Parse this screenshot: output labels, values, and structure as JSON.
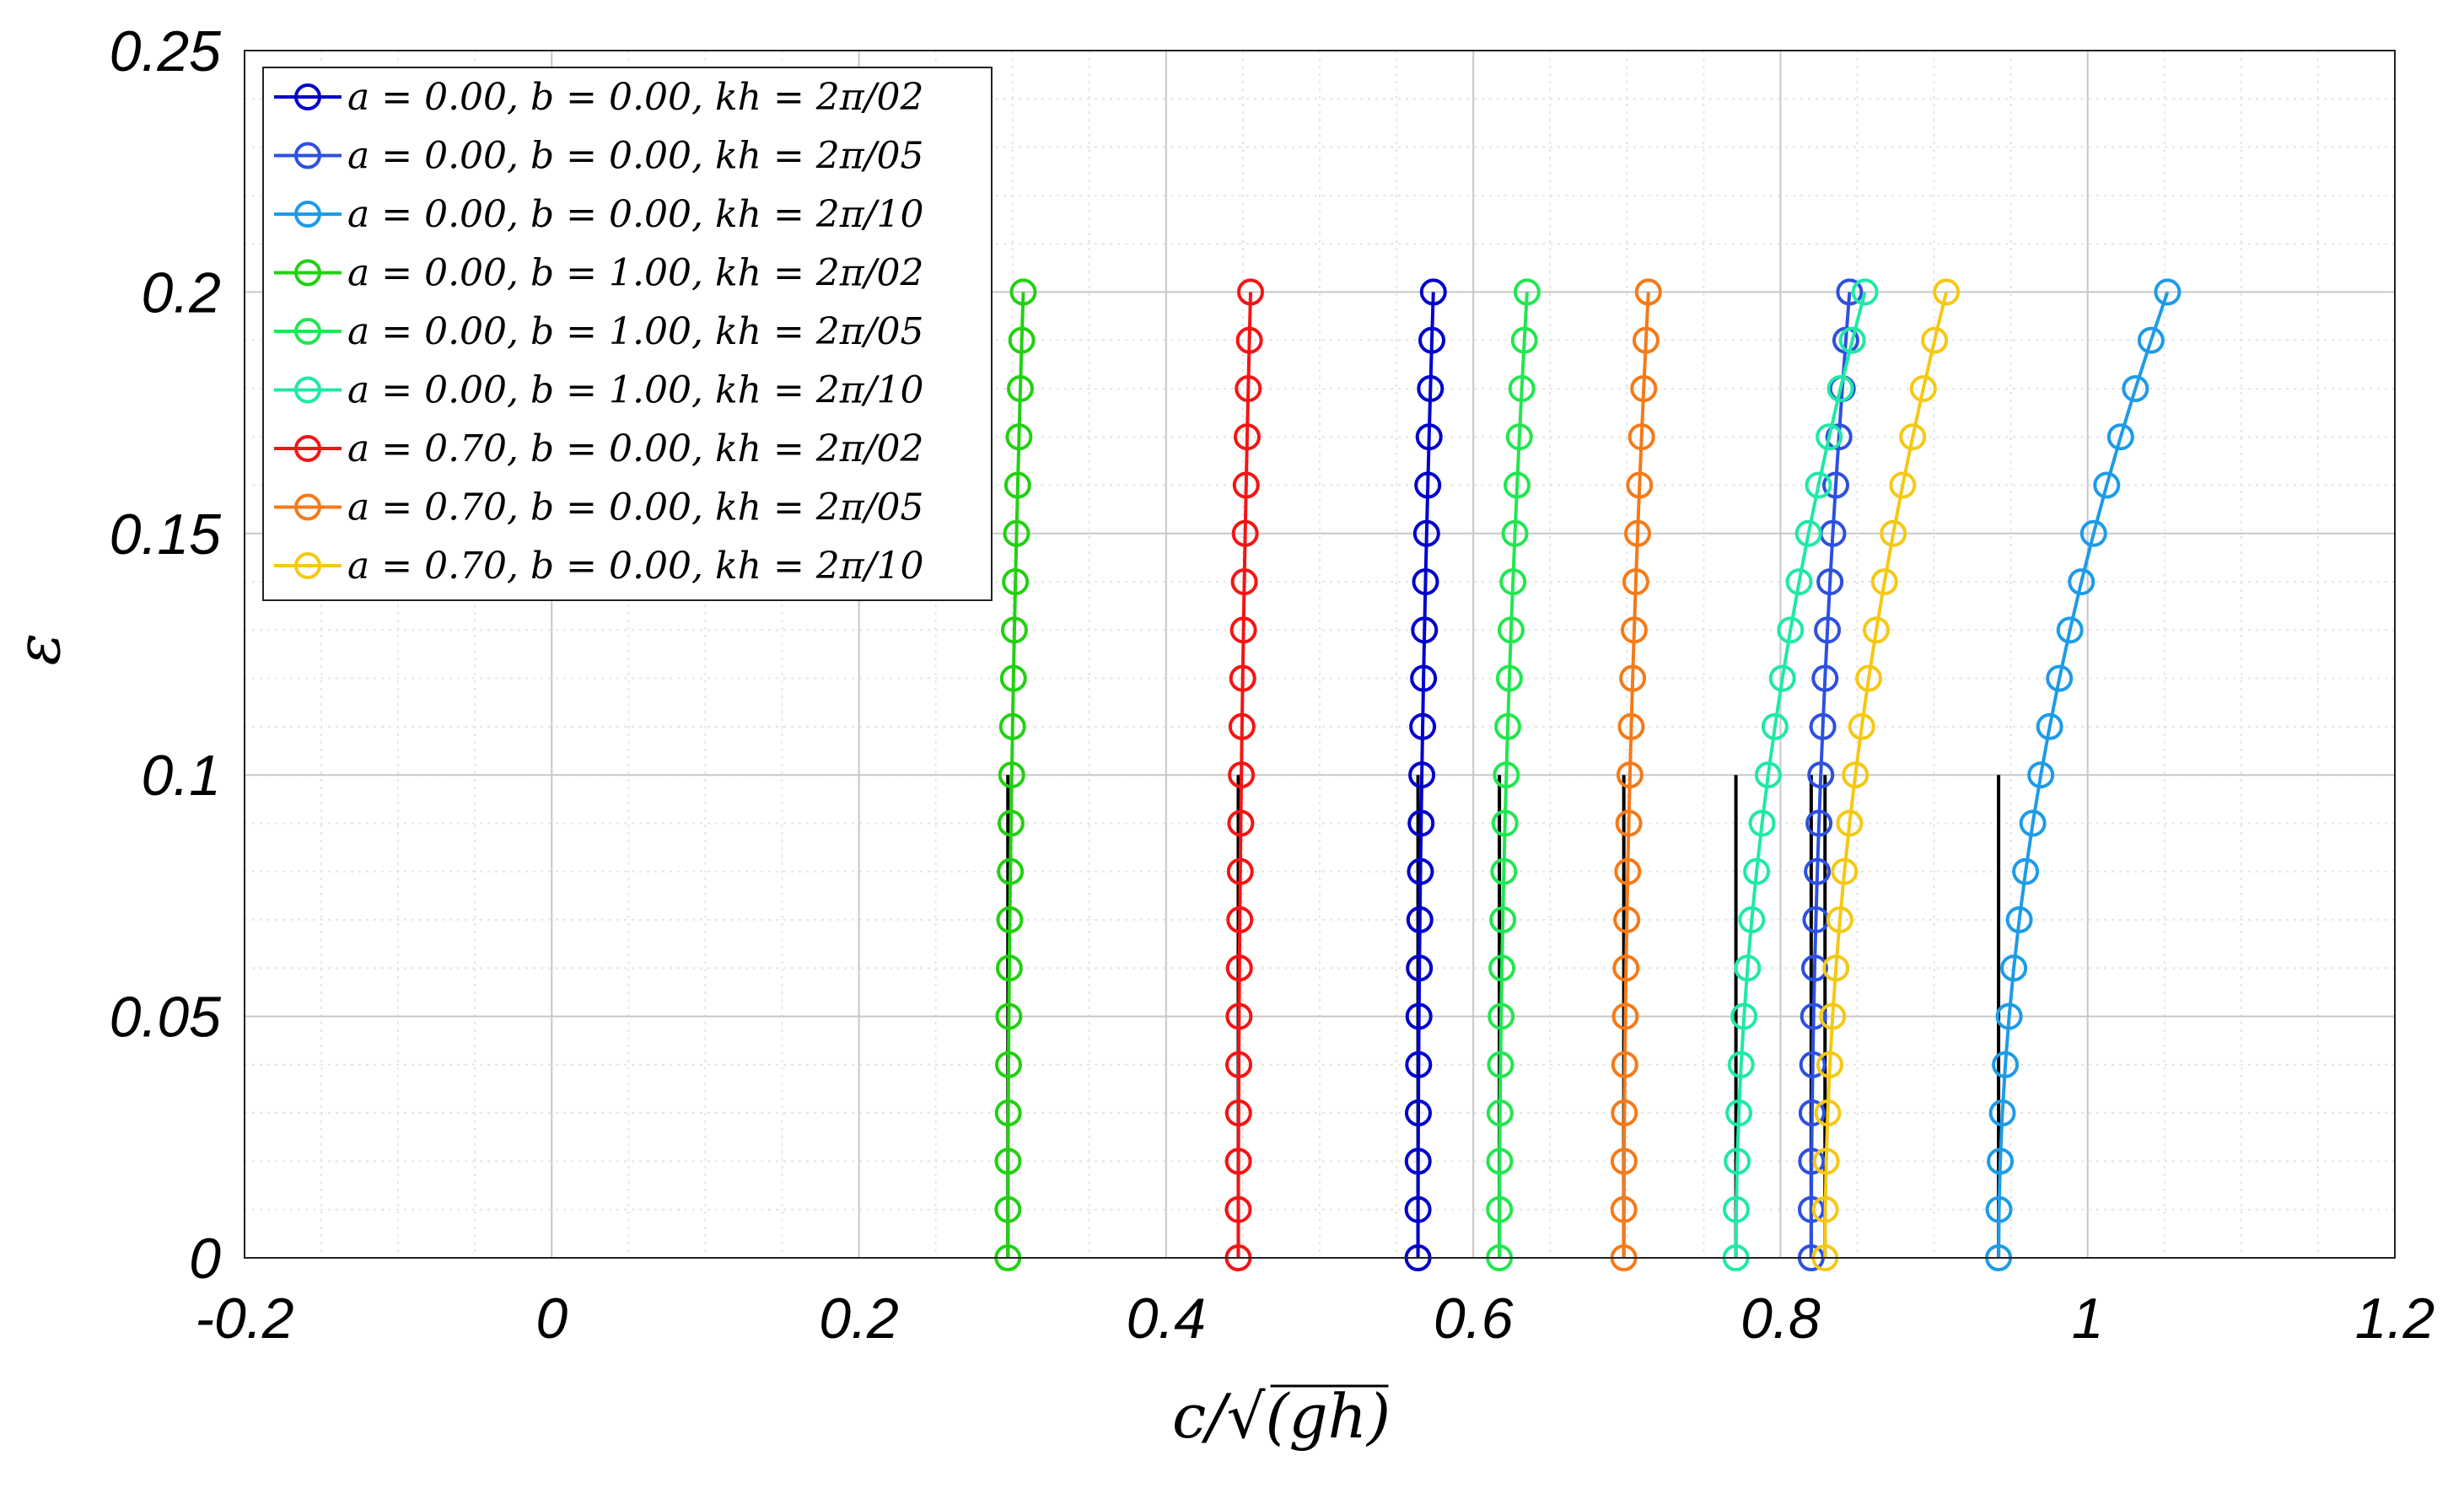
{
  "chart_data": {
    "type": "line",
    "title": "",
    "xlabel": "c/√(gh)",
    "ylabel": "ε",
    "xlim": [
      -0.2,
      1.2
    ],
    "ylim": [
      0,
      0.25
    ],
    "xticks": [
      -0.2,
      0,
      0.2,
      0.4,
      0.6,
      0.8,
      1,
      1.2
    ],
    "xtick_labels": [
      "-0.2",
      "0",
      "0.2",
      "0.4",
      "0.6",
      "0.8",
      "1",
      "1.2"
    ],
    "yticks": [
      0,
      0.05,
      0.1,
      0.15,
      0.2,
      0.25
    ],
    "ytick_labels": [
      "0",
      "0.05",
      "0.1",
      "0.15",
      "0.2",
      "0.25"
    ],
    "grid": true,
    "minor_grid": true,
    "legend_position": "top-left",
    "epsilon": [
      0,
      0.01,
      0.02,
      0.03,
      0.04,
      0.05,
      0.06,
      0.07,
      0.08,
      0.09,
      0.1,
      0.11,
      0.12,
      0.13,
      0.14,
      0.15,
      0.16,
      0.17,
      0.18,
      0.19,
      0.2
    ],
    "series": [
      {
        "name": "a = 0.00, b = 0.00, kh = 2π/02",
        "color": "#0000cc",
        "c_at_0": 0.564,
        "c_at_0.2": 0.574
      },
      {
        "name": "a = 0.00, b = 0.00, kh = 2π/05",
        "color": "#2e50e0",
        "c_at_0": 0.82,
        "c_at_0.2": 0.845
      },
      {
        "name": "a = 0.00, b = 0.00, kh = 2π/10",
        "color": "#1d9be8",
        "c_at_0": 0.942,
        "c_at_0.2": 1.052
      },
      {
        "name": "a = 0.00, b = 1.00, kh = 2π/02",
        "color": "#22d012",
        "c_at_0": 0.297,
        "c_at_0.2": 0.307
      },
      {
        "name": "a = 0.00, b = 1.00, kh = 2π/05",
        "color": "#22e650",
        "c_at_0": 0.617,
        "c_at_0.2": 0.635
      },
      {
        "name": "a = 0.00, b = 1.00, kh = 2π/10",
        "color": "#20e8a8",
        "c_at_0": 0.771,
        "c_at_0.2": 0.855
      },
      {
        "name": "a = 0.70, b = 0.00, kh = 2π/02",
        "color": "#f51414",
        "c_at_0": 0.447,
        "c_at_0.2": 0.455
      },
      {
        "name": "a = 0.70, b = 0.00, kh = 2π/05",
        "color": "#f57a18",
        "c_at_0": 0.698,
        "c_at_0.2": 0.714
      },
      {
        "name": "a = 0.70, b = 0.00, kh = 2π/10",
        "color": "#f5c814",
        "c_at_0": 0.829,
        "c_at_0.2": 0.908
      }
    ],
    "reference_lines": {
      "color": "#000000",
      "y_range": [
        0,
        0.1
      ],
      "x": [
        0.297,
        0.447,
        0.564,
        0.617,
        0.698,
        0.771,
        0.82,
        0.829,
        0.942
      ]
    }
  },
  "legend": {
    "items": [
      "a = 0.00, b = 0.00, kh = 2π/02",
      "a = 0.00, b = 0.00, kh = 2π/05",
      "a = 0.00, b = 0.00, kh = 2π/10",
      "a = 0.00, b = 1.00, kh = 2π/02",
      "a = 0.00, b = 1.00, kh = 2π/05",
      "a = 0.00, b = 1.00, kh = 2π/10",
      "a = 0.70, b = 0.00, kh = 2π/02",
      "a = 0.70, b = 0.00, kh = 2π/05",
      "a = 0.70, b = 0.00, kh = 2π/10"
    ]
  }
}
